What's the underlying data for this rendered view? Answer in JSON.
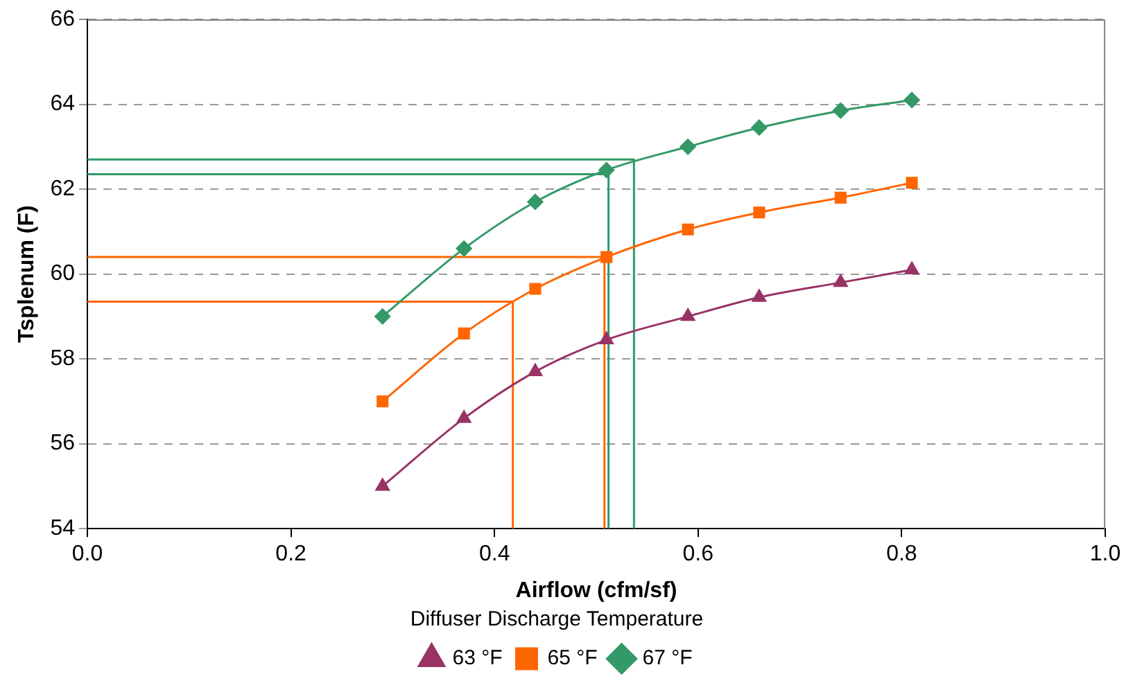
{
  "chart_data": {
    "type": "line",
    "xlabel": "Airflow (cfm/sf)",
    "ylabel": "Tsplenum (F)",
    "legend_title": "Diffuser Discharge Temperature",
    "x": [
      0.29,
      0.37,
      0.44,
      0.51,
      0.59,
      0.66,
      0.74,
      0.81
    ],
    "series": [
      {
        "name": "63 °F",
        "color": "#993366",
        "marker": "triangle",
        "values": [
          55.0,
          56.6,
          57.7,
          58.45,
          59.0,
          59.45,
          59.8,
          60.1
        ]
      },
      {
        "name": "65 °F",
        "color": "#ff6600",
        "marker": "square",
        "values": [
          57.0,
          58.6,
          59.65,
          60.4,
          61.05,
          61.45,
          61.8,
          62.15
        ]
      },
      {
        "name": "67 °F",
        "color": "#339966",
        "marker": "diamond",
        "values": [
          59.0,
          60.6,
          61.7,
          62.45,
          63.0,
          63.45,
          63.85,
          64.1
        ]
      },
      {
        "color": "#339966",
        "marker": "none",
        "x": [
          0,
          0.537,
          0.537
        ],
        "values": [
          62.7,
          62.7,
          54
        ]
      },
      {
        "color": "#339966",
        "marker": "none",
        "x": [
          0,
          0.512,
          0.512
        ],
        "values": [
          62.35,
          62.35,
          54
        ]
      },
      {
        "color": "#ff6600",
        "marker": "none",
        "x": [
          0,
          0.508,
          0.508
        ],
        "values": [
          60.4,
          60.4,
          54
        ]
      },
      {
        "color": "#ff6600",
        "marker": "none",
        "x": [
          0,
          0.418,
          0.418
        ],
        "values": [
          59.35,
          59.35,
          54
        ]
      }
    ],
    "xlim": [
      0,
      1
    ],
    "xticks": [
      {
        "value": 0,
        "label": "0.0"
      },
      {
        "value": 0.2,
        "label": "0.2"
      },
      {
        "value": 0.4,
        "label": "0.4"
      },
      {
        "value": 0.6,
        "label": "0.6"
      },
      {
        "value": 0.8,
        "label": "0.8"
      },
      {
        "value": 1,
        "label": "1.0"
      }
    ],
    "ylim": [
      54,
      66
    ],
    "yticks": [
      54,
      56,
      58,
      60,
      62,
      64,
      66
    ],
    "grid": "y",
    "legend": "bottom"
  }
}
